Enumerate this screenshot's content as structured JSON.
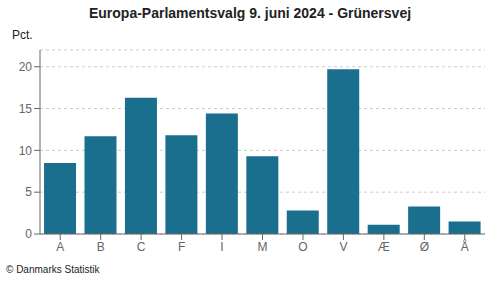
{
  "chart_data": {
    "type": "bar",
    "title": "Europa-Parlamentsvalg 9. juni 2024 - Grünersvej",
    "ylabel": "Pct.",
    "annotations": [
      "© Danmarks Statistik"
    ],
    "categories": [
      "A",
      "B",
      "C",
      "F",
      "I",
      "M",
      "O",
      "V",
      "Æ",
      "Ø",
      "Å"
    ],
    "values": [
      8.5,
      11.7,
      16.3,
      11.8,
      14.4,
      9.3,
      2.8,
      19.7,
      1.1,
      3.3,
      1.5
    ],
    "color": "#1a6e8e",
    "ylim": [
      0,
      22
    ],
    "yticks": [
      0,
      5,
      10,
      15,
      20
    ],
    "grid": true
  }
}
